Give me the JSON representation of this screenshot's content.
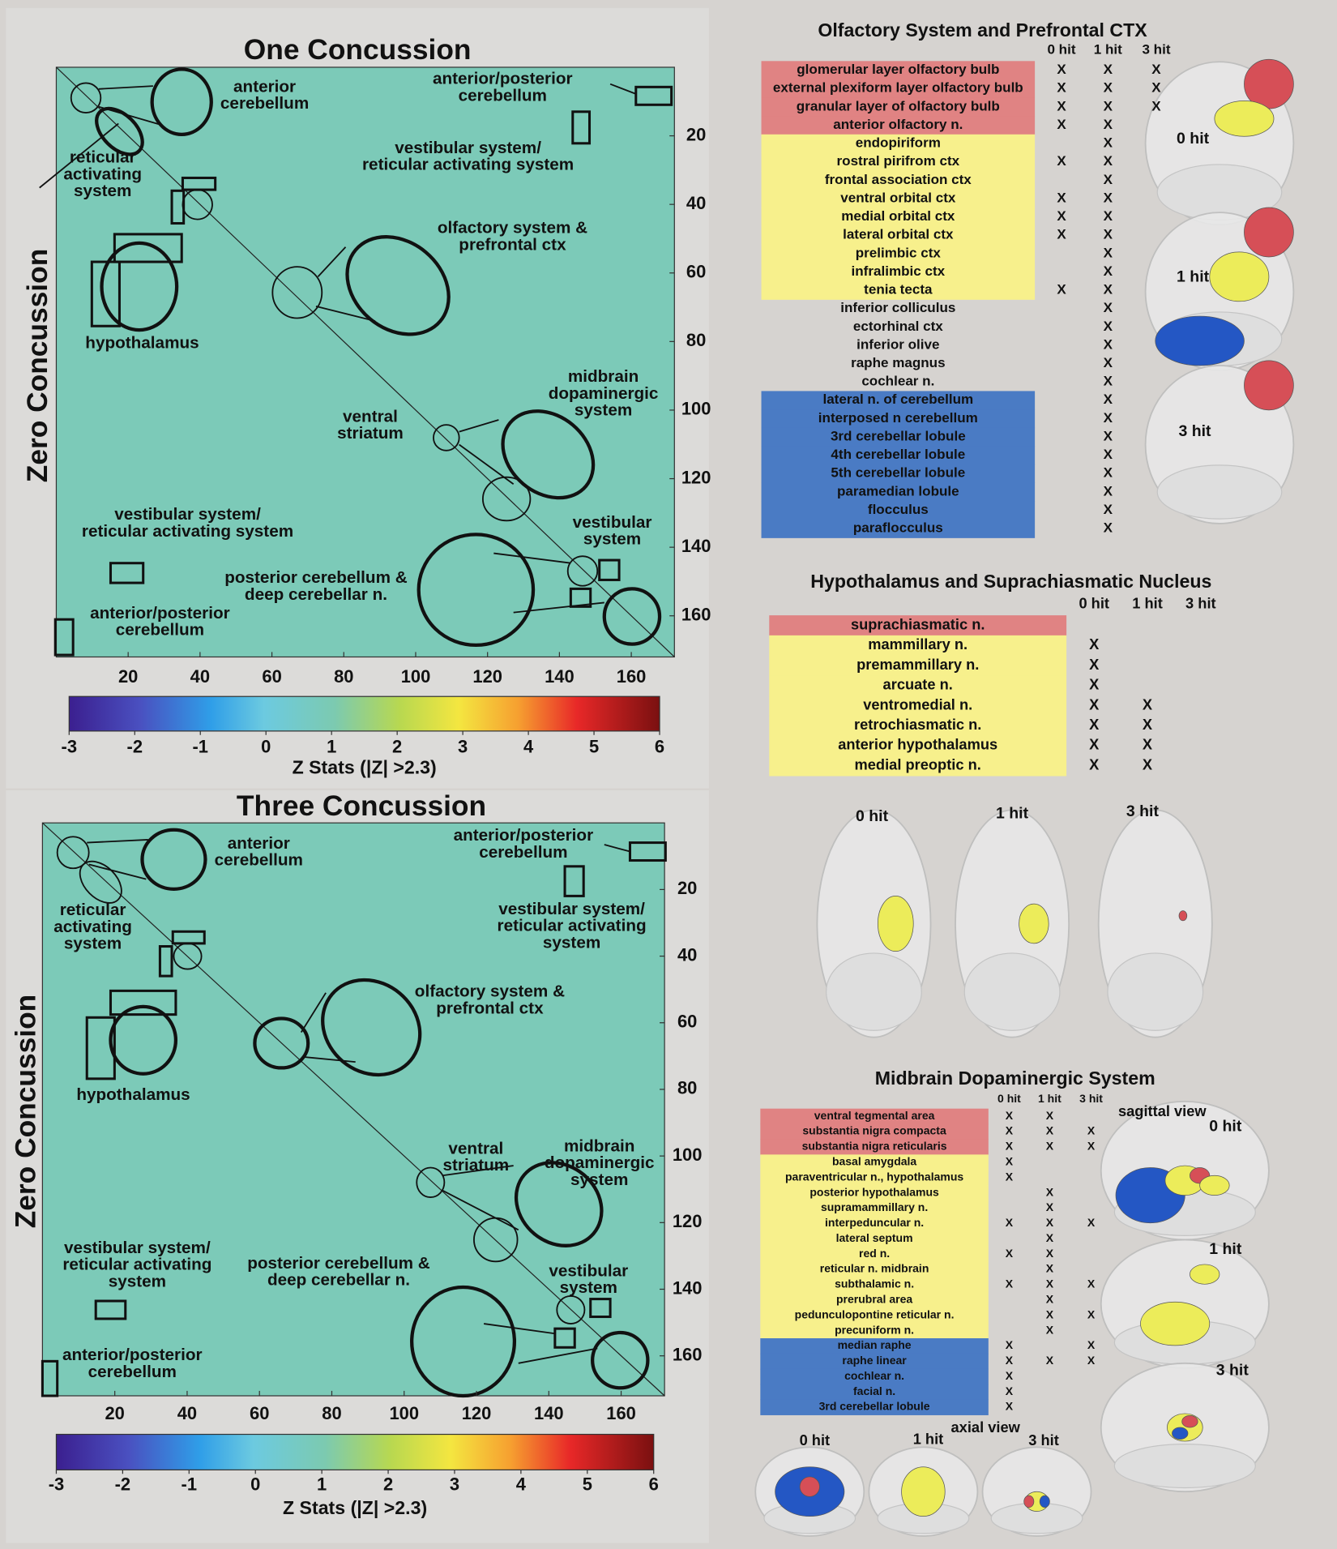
{
  "panels": [
    {
      "title": "One Concussion",
      "y_label": "Zero Concussion",
      "xlim": [
        0,
        172
      ],
      "ylim": [
        0,
        172
      ],
      "xticks": [
        20,
        40,
        60,
        80,
        100,
        120,
        140,
        160
      ],
      "yticks": [
        20,
        40,
        60,
        80,
        100,
        120,
        140,
        160
      ],
      "colorbar": {
        "lim": [
          -3,
          6
        ],
        "ticks": [
          -3,
          -2,
          -1,
          0,
          1,
          2,
          3,
          4,
          5,
          6
        ],
        "label": "Z Stats (|Z| >2.3)"
      },
      "annotations": [
        {
          "lines": [
            "anterior",
            "cerebellum"
          ]
        },
        {
          "lines": [
            "anterior/posterior",
            "cerebellum"
          ]
        },
        {
          "lines": [
            "reticular",
            "activating",
            "system"
          ]
        },
        {
          "lines": [
            "vestibular system/",
            "reticular activating system"
          ]
        },
        {
          "lines": [
            "olfactory system &",
            "prefrontal ctx"
          ]
        },
        {
          "lines": [
            "hypothalamus"
          ]
        },
        {
          "lines": [
            "midbrain",
            "dopaminergic",
            "system"
          ]
        },
        {
          "lines": [
            "ventral",
            "striatum"
          ]
        },
        {
          "lines": [
            "vestibular",
            "system"
          ]
        },
        {
          "lines": [
            "vestibular system/",
            "reticular activating system"
          ]
        },
        {
          "lines": [
            "posterior cerebellum &",
            "deep cerebellar n."
          ]
        },
        {
          "lines": [
            "anterior/posterior",
            "cerebellum"
          ]
        }
      ]
    },
    {
      "title": "Three Concussion",
      "y_label": "Zero Concussion",
      "xlim": [
        0,
        172
      ],
      "ylim": [
        0,
        172
      ],
      "xticks": [
        20,
        40,
        60,
        80,
        100,
        120,
        140,
        160
      ],
      "yticks": [
        20,
        40,
        60,
        80,
        100,
        120,
        140,
        160
      ],
      "colorbar": {
        "lim": [
          -3,
          6
        ],
        "ticks": [
          -3,
          -2,
          -1,
          0,
          1,
          2,
          3,
          4,
          5,
          6
        ],
        "label": "Z Stats (|Z| >2.3)"
      },
      "annotations": [
        {
          "lines": [
            "anterior",
            "cerebellum"
          ]
        },
        {
          "lines": [
            "anterior/posterior",
            "cerebellum"
          ]
        },
        {
          "lines": [
            "reticular",
            "activating",
            "system"
          ]
        },
        {
          "lines": [
            "vestibular system/",
            "reticular activating",
            "system"
          ]
        },
        {
          "lines": [
            "olfactory system &",
            "prefrontal ctx"
          ]
        },
        {
          "lines": [
            "hypothalamus"
          ]
        },
        {
          "lines": [
            "ventral",
            "striatum"
          ]
        },
        {
          "lines": [
            "midbrain",
            "dopaminergic",
            "system"
          ]
        },
        {
          "lines": [
            "vestibular system/",
            "reticular activating",
            "system"
          ]
        },
        {
          "lines": [
            "posterior cerebellum &",
            "deep cerebellar n."
          ]
        },
        {
          "lines": [
            "vestibular",
            "system"
          ]
        },
        {
          "lines": [
            "anterior/posterior",
            "cerebellum"
          ]
        }
      ]
    }
  ],
  "tables": [
    {
      "title": "Olfactory System and Prefrontal CTX",
      "columns": [
        "0 hit",
        "1 hit",
        "3 hit"
      ],
      "rows": [
        {
          "label": "glomerular layer olfactory bulb",
          "color": "#e08383",
          "cells": [
            "X",
            "X",
            "X"
          ]
        },
        {
          "label": "external plexiform layer olfactory bulb",
          "color": "#e08383",
          "cells": [
            "X",
            "X",
            "X"
          ]
        },
        {
          "label": "granular layer of olfactory bulb",
          "color": "#e08383",
          "cells": [
            "X",
            "X",
            "X"
          ]
        },
        {
          "label": "anterior olfactory n.",
          "color": "#e08383",
          "cells": [
            "X",
            "X",
            null
          ]
        },
        {
          "label": "endopiriform",
          "color": "#f7f08c",
          "cells": [
            null,
            "X",
            null
          ]
        },
        {
          "label": "rostral pirifrom ctx",
          "color": "#f7f08c",
          "cells": [
            "X",
            "X",
            null
          ]
        },
        {
          "label": "frontal association ctx",
          "color": "#f7f08c",
          "cells": [
            null,
            "X",
            null
          ]
        },
        {
          "label": "ventral orbital ctx",
          "color": "#f7f08c",
          "cells": [
            "X",
            "X",
            null
          ]
        },
        {
          "label": "medial orbital ctx",
          "color": "#f7f08c",
          "cells": [
            "X",
            "X",
            null
          ]
        },
        {
          "label": "lateral orbital ctx",
          "color": "#f7f08c",
          "cells": [
            "X",
            "X",
            null
          ]
        },
        {
          "label": "prelimbic ctx",
          "color": "#f7f08c",
          "cells": [
            null,
            "X",
            null
          ]
        },
        {
          "label": "infralimbic ctx",
          "color": "#f7f08c",
          "cells": [
            null,
            "X",
            null
          ]
        },
        {
          "label": "tenia tecta",
          "color": "#f7f08c",
          "cells": [
            "X",
            "X",
            null
          ]
        },
        {
          "label": "inferior colliculus",
          "color": null,
          "cells": [
            null,
            "X",
            null
          ]
        },
        {
          "label": "ectorhinal ctx",
          "color": null,
          "cells": [
            null,
            "X",
            null
          ]
        },
        {
          "label": "inferior olive",
          "color": null,
          "cells": [
            null,
            "X",
            null
          ]
        },
        {
          "label": "raphe magnus",
          "color": null,
          "cells": [
            null,
            "X",
            null
          ]
        },
        {
          "label": "cochlear n.",
          "color": null,
          "cells": [
            null,
            "X",
            null
          ]
        },
        {
          "label": "lateral n. of cerebellum",
          "color": "#4a7bc4",
          "cells": [
            null,
            "X",
            null
          ]
        },
        {
          "label": "interposed n cerebellum",
          "color": "#4a7bc4",
          "cells": [
            null,
            "X",
            null
          ]
        },
        {
          "label": "3rd cerebellar lobule",
          "color": "#4a7bc4",
          "cells": [
            null,
            "X",
            null
          ]
        },
        {
          "label": "4th cerebellar lobule",
          "color": "#4a7bc4",
          "cells": [
            null,
            "X",
            null
          ]
        },
        {
          "label": "5th cerebellar lobule",
          "color": "#4a7bc4",
          "cells": [
            null,
            "X",
            null
          ]
        },
        {
          "label": "paramedian lobule",
          "color": "#4a7bc4",
          "cells": [
            null,
            "X",
            null
          ]
        },
        {
          "label": "flocculus",
          "color": "#4a7bc4",
          "cells": [
            null,
            "X",
            null
          ]
        },
        {
          "label": "paraflocculus",
          "color": "#4a7bc4",
          "cells": [
            null,
            "X",
            null
          ]
        }
      ],
      "images": [
        "0 hit",
        "1 hit",
        "3 hit"
      ]
    },
    {
      "title": "Hypothalamus and Suprachiasmatic Nucleus",
      "columns": [
        "0 hit",
        "1 hit",
        "3 hit"
      ],
      "rows": [
        {
          "label": "suprachiasmatic n.",
          "color": "#e08383",
          "cells": [
            null,
            null,
            null
          ]
        },
        {
          "label": "mammillary n.",
          "color": "#f7f08c",
          "cells": [
            "X",
            null,
            null
          ]
        },
        {
          "label": "premammillary n.",
          "color": "#f7f08c",
          "cells": [
            "X",
            null,
            null
          ]
        },
        {
          "label": "arcuate n.",
          "color": "#f7f08c",
          "cells": [
            "X",
            null,
            null
          ]
        },
        {
          "label": "ventromedial n.",
          "color": "#f7f08c",
          "cells": [
            "X",
            "X",
            null
          ]
        },
        {
          "label": "retrochiasmatic n.",
          "color": "#f7f08c",
          "cells": [
            "X",
            "X",
            null
          ]
        },
        {
          "label": "anterior hypothalamus",
          "color": "#f7f08c",
          "cells": [
            "X",
            "X",
            null
          ]
        },
        {
          "label": "medial preoptic n.",
          "color": "#f7f08c",
          "cells": [
            "X",
            "X",
            null
          ]
        }
      ],
      "images": [
        "0 hit",
        "1 hit",
        "3 hit"
      ]
    },
    {
      "title": "Midbrain Dopaminergic System",
      "columns": [
        "0 hit",
        "1 hit",
        "3 hit"
      ],
      "rows": [
        {
          "label": "ventral tegmental area",
          "color": "#e08383",
          "cells": [
            "X",
            "X",
            null
          ]
        },
        {
          "label": "substantia nigra compacta",
          "color": "#e08383",
          "cells": [
            "X",
            "X",
            "X"
          ]
        },
        {
          "label": "substantia nigra reticularis",
          "color": "#e08383",
          "cells": [
            "X",
            "X",
            "X"
          ]
        },
        {
          "label": "basal amygdala",
          "color": "#f7f08c",
          "cells": [
            "X",
            null,
            null
          ]
        },
        {
          "label": "paraventricular n., hypothalamus",
          "color": "#f7f08c",
          "cells": [
            "X",
            null,
            null
          ]
        },
        {
          "label": "posterior hypothalamus",
          "color": "#f7f08c",
          "cells": [
            null,
            "X",
            null
          ]
        },
        {
          "label": "supramammillary n.",
          "color": "#f7f08c",
          "cells": [
            null,
            "X",
            null
          ]
        },
        {
          "label": "interpeduncular n.",
          "color": "#f7f08c",
          "cells": [
            "X",
            "X",
            "X"
          ]
        },
        {
          "label": "lateral septum",
          "color": "#f7f08c",
          "cells": [
            null,
            "X",
            null
          ]
        },
        {
          "label": "red n.",
          "color": "#f7f08c",
          "cells": [
            "X",
            "X",
            null
          ]
        },
        {
          "label": "reticular n. midbrain",
          "color": "#f7f08c",
          "cells": [
            null,
            "X",
            null
          ]
        },
        {
          "label": "subthalamic n.",
          "color": "#f7f08c",
          "cells": [
            "X",
            "X",
            "X"
          ]
        },
        {
          "label": "prerubral area",
          "color": "#f7f08c",
          "cells": [
            null,
            "X",
            null
          ]
        },
        {
          "label": "pedunculopontine reticular n.",
          "color": "#f7f08c",
          "cells": [
            null,
            "X",
            "X"
          ]
        },
        {
          "label": "precuniform n.",
          "color": "#f7f08c",
          "cells": [
            null,
            "X",
            null
          ]
        },
        {
          "label": "median raphe",
          "color": "#4a7bc4",
          "cells": [
            "X",
            null,
            "X"
          ]
        },
        {
          "label": "raphe linear",
          "color": "#4a7bc4",
          "cells": [
            "X",
            "X",
            "X"
          ]
        },
        {
          "label": "cochlear n.",
          "color": "#4a7bc4",
          "cells": [
            "X",
            null,
            null
          ]
        },
        {
          "label": "facial n.",
          "color": "#4a7bc4",
          "cells": [
            "X",
            null,
            null
          ]
        },
        {
          "label": "3rd cerebellar lobule",
          "color": "#4a7bc4",
          "cells": [
            "X",
            null,
            null
          ]
        }
      ],
      "view_labels": [
        "sagittal view",
        "axial view"
      ],
      "images": [
        "0 hit",
        "1 hit",
        "3 hit"
      ],
      "axial_images": [
        "0 hit",
        "1 hit",
        "3 hit"
      ]
    }
  ]
}
